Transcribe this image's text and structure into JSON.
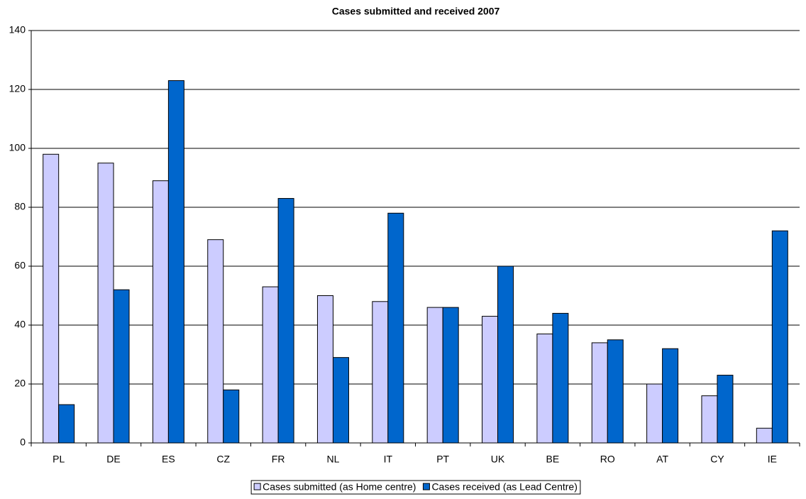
{
  "chart_data": {
    "type": "bar",
    "title": "Cases submitted and received 2007",
    "categories": [
      "PL",
      "DE",
      "ES",
      "CZ",
      "FR",
      "NL",
      "IT",
      "PT",
      "UK",
      "BE",
      "RO",
      "AT",
      "CY",
      "IE"
    ],
    "series": [
      {
        "name": "Cases submitted (as Home centre)",
        "color": "#ccccff",
        "values": [
          98,
          95,
          89,
          69,
          53,
          50,
          48,
          46,
          43,
          37,
          34,
          20,
          16,
          5
        ]
      },
      {
        "name": "Cases received (as Lead Centre)",
        "color": "#0066cc",
        "values": [
          13,
          52,
          123,
          18,
          83,
          29,
          78,
          46,
          60,
          44,
          35,
          32,
          23,
          72
        ]
      }
    ],
    "ylim": [
      0,
      140
    ],
    "yticks": [
      0,
      20,
      40,
      60,
      80,
      100,
      120,
      140
    ],
    "grid": true,
    "legend": "bottom"
  }
}
